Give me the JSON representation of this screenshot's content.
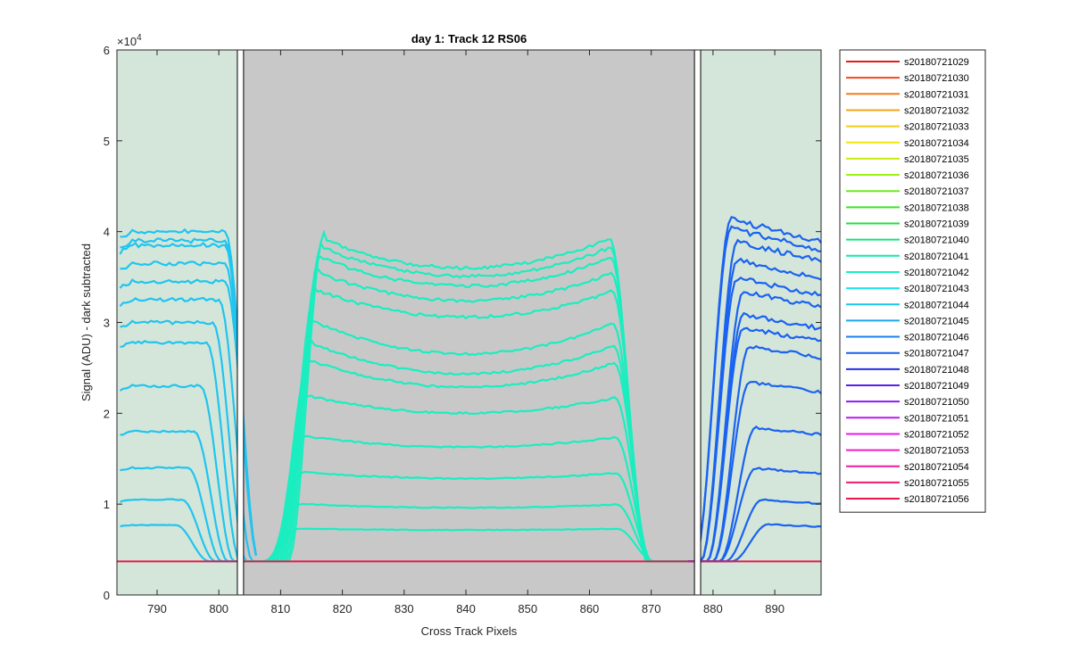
{
  "chart_data": {
    "type": "line",
    "title": "day 1: Track 12  RS06",
    "xlabel": "Cross Track Pixels",
    "ylabel": "Signal (ADU) - dark subtracted",
    "xlim": [
      783.5,
      897.5
    ],
    "ylim": [
      0,
      60000
    ],
    "x_ticks": [
      790,
      800,
      810,
      820,
      830,
      840,
      850,
      860,
      870,
      880,
      890
    ],
    "y_ticks": [
      0,
      1,
      2,
      3,
      4,
      5,
      6
    ],
    "y_exponent_label": "×10",
    "y_exponent": "4",
    "grid": false,
    "legend_position": "outside-right",
    "regions": [
      {
        "kind": "green",
        "x": [
          783.5,
          803
        ],
        "color": "#d4e6d9"
      },
      {
        "kind": "gray",
        "x": [
          804,
          877
        ],
        "color": "#c8c8c8"
      },
      {
        "kind": "green",
        "x": [
          878,
          897.5
        ],
        "color": "#d4e6d9"
      }
    ],
    "boundary_boxes": [
      [
        803,
        804
      ],
      [
        877,
        878
      ]
    ],
    "baseline": 3700,
    "baseline_color": "#e6194b",
    "left_plateaus": [
      7700,
      10500,
      14000,
      18000,
      23000,
      27800,
      30000,
      32500,
      34500,
      36500,
      38500,
      39000,
      40000
    ],
    "left_edge_positions": [
      794,
      795,
      796,
      797,
      798,
      799,
      800,
      801,
      802,
      802,
      802,
      802,
      802
    ],
    "center_levels": [
      7300,
      10000,
      13500,
      17500,
      22000,
      26000,
      28000,
      30500,
      34000,
      36000,
      37800,
      39000,
      40000
    ],
    "center_dip": [
      0.02,
      0.04,
      0.05,
      0.07,
      0.09,
      0.12,
      0.13,
      0.13,
      0.1,
      0.1,
      0.1,
      0.1,
      0.1
    ],
    "right_plateaus": [
      7800,
      10500,
      14000,
      18500,
      23500,
      27500,
      29500,
      31000,
      33500,
      35000,
      37000,
      39000,
      40500,
      41500
    ],
    "right_start_positions": [
      888,
      887,
      886,
      886,
      885,
      885,
      884,
      884,
      884,
      883,
      883,
      883,
      882,
      882
    ],
    "series": [
      {
        "name": "s20180721029",
        "color": "#e31a1c"
      },
      {
        "name": "s20180721030",
        "color": "#f2461c"
      },
      {
        "name": "s20180721031",
        "color": "#f57a1a"
      },
      {
        "name": "s20180721032",
        "color": "#f5a419"
      },
      {
        "name": "s20180721033",
        "color": "#f5cc17"
      },
      {
        "name": "s20180721034",
        "color": "#f0e612"
      },
      {
        "name": "s20180721035",
        "color": "#c8ec12"
      },
      {
        "name": "s20180721036",
        "color": "#9ef016"
      },
      {
        "name": "s20180721037",
        "color": "#6cec1c"
      },
      {
        "name": "s20180721038",
        "color": "#3fe426"
      },
      {
        "name": "s20180721039",
        "color": "#20df3c"
      },
      {
        "name": "s20180721040",
        "color": "#17e07e"
      },
      {
        "name": "s20180721041",
        "color": "#16e7a6"
      },
      {
        "name": "s20180721042",
        "color": "#17ecc7"
      },
      {
        "name": "s20180721043",
        "color": "#18e5ee"
      },
      {
        "name": "s20180721044",
        "color": "#18c5f0"
      },
      {
        "name": "s20180721045",
        "color": "#1aa7f0"
      },
      {
        "name": "s20180721046",
        "color": "#1a82ee"
      },
      {
        "name": "s20180721047",
        "color": "#1a5ef0"
      },
      {
        "name": "s20180721048",
        "color": "#1f2fe8"
      },
      {
        "name": "s20180721049",
        "color": "#5a1fec"
      },
      {
        "name": "s20180721050",
        "color": "#8c1cf0"
      },
      {
        "name": "s20180721051",
        "color": "#bc18f2"
      },
      {
        "name": "s20180721052",
        "color": "#e518ec"
      },
      {
        "name": "s20180721053",
        "color": "#f01cc7"
      },
      {
        "name": "s20180721054",
        "color": "#f01c9c"
      },
      {
        "name": "s20180721055",
        "color": "#ee1c72"
      },
      {
        "name": "s20180721056",
        "color": "#e8184a"
      }
    ],
    "left_group_color": "#20c4f0",
    "center_group_color": "#1aeec0",
    "right_group_color": "#1a62f0"
  }
}
